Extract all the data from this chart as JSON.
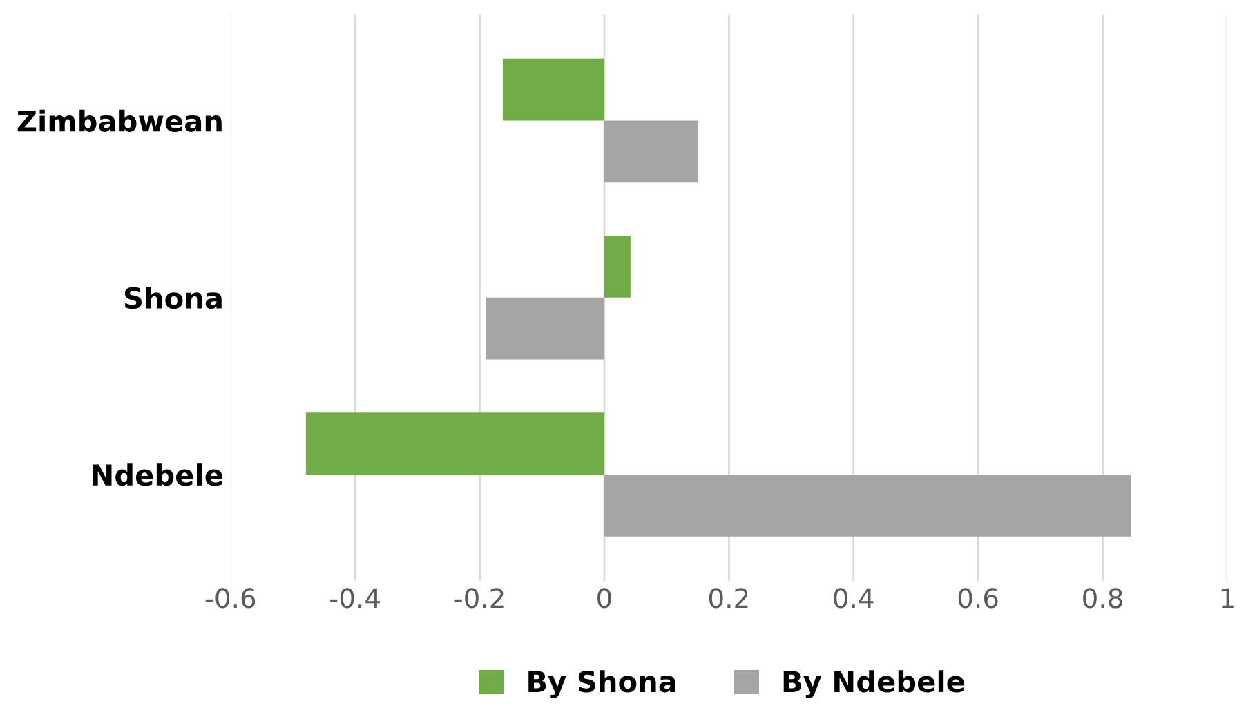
{
  "chart_data": {
    "type": "bar",
    "orientation": "horizontal",
    "categories": [
      "Zimbabwean",
      "Shona",
      "Ndebele"
    ],
    "series": [
      {
        "name": "By Shona",
        "color": "#70ad47",
        "values": [
          -0.163,
          0.042,
          -0.479
        ]
      },
      {
        "name": "By Ndebele",
        "color": "#a5a5a5",
        "values": [
          0.151,
          -0.19,
          0.846
        ]
      }
    ],
    "xlim": [
      -0.6,
      1
    ],
    "xticks": [
      -0.6,
      -0.4,
      -0.2,
      0,
      0.2,
      0.4,
      0.6,
      0.8,
      1
    ],
    "grid": "x",
    "legend": "bottom"
  }
}
